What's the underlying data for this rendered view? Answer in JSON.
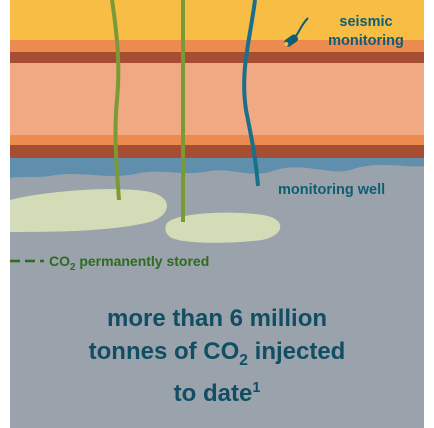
{
  "labels": {
    "seismic_line1": "seismic",
    "seismic_line2": "monitoring",
    "monitoring_well": "monitoring well",
    "co2_stored_prefix": "CO",
    "co2_stored_sub": "2",
    "co2_stored_suffix": " permanently stored"
  },
  "headline": {
    "line1": "more than 6 million",
    "line2_prefix": "tonnes of CO",
    "line2_sub": "2",
    "line2_suffix": " injected",
    "line3": "to date",
    "footnote_mark": "1"
  },
  "colors": {
    "surface_yellow": "#f7bd45",
    "orange_band": "#ec8b4f",
    "brown_band": "#a64e33",
    "salmon_layer": "#f0a983",
    "reservoir_blue": "#5f8fad",
    "reservoir_gray": "#9aa2ab",
    "co2_plume": "#d3dcb7",
    "well_green": "#7a9a36",
    "well_blue": "#1a6f8a",
    "text_teal": "#0d5e73",
    "text_green": "#2e6a1f",
    "headline_navy": "#124e63"
  }
}
